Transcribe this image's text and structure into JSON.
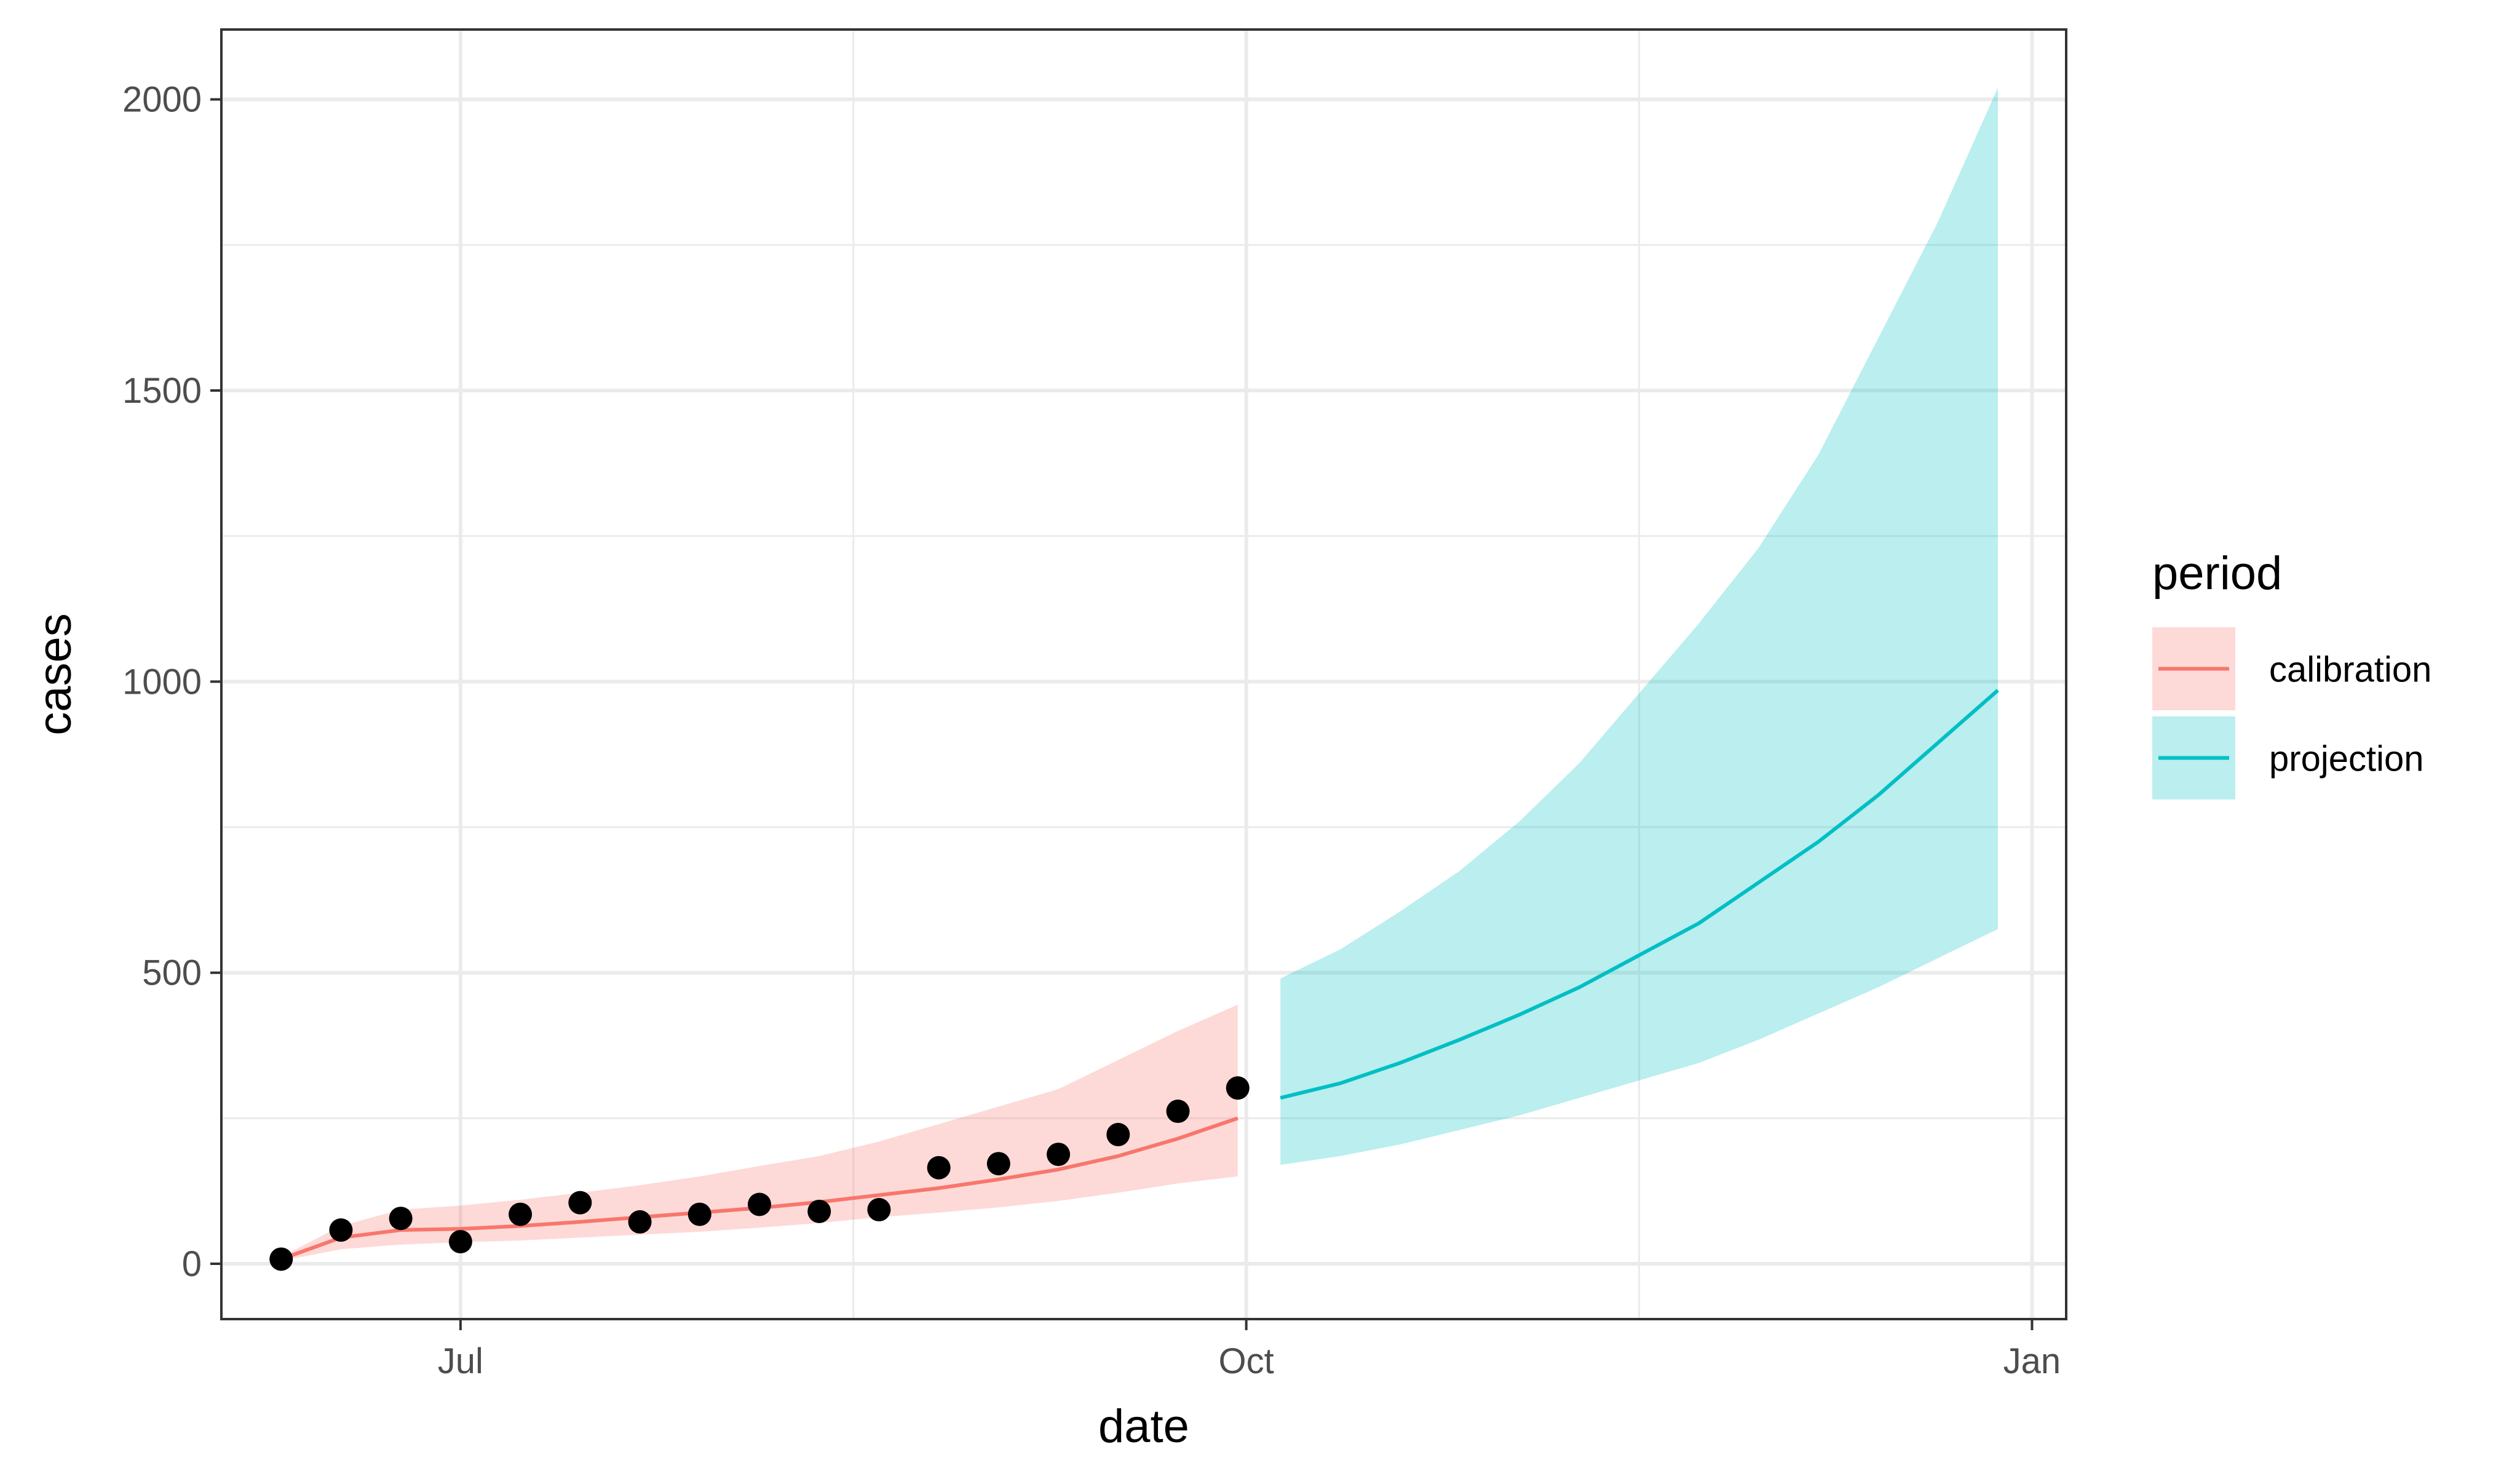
{
  "chart_data": {
    "type": "line",
    "xlabel": "date",
    "ylabel": "cases",
    "x_axis_type": "date",
    "xlim": [
      "2020-06-03",
      "2021-01-05"
    ],
    "ylim": [
      -95,
      2120
    ],
    "x_ticks": [
      {
        "date": "2020-07-01",
        "label": "Jul"
      },
      {
        "date": "2020-10-01",
        "label": "Oct"
      },
      {
        "date": "2021-01-01",
        "label": "Jan"
      }
    ],
    "y_ticks": [
      0,
      500,
      1000,
      1500,
      2000
    ],
    "grid": true,
    "legend": {
      "title": "period",
      "position": "right",
      "entries": [
        {
          "label": "calibration",
          "color": "#F8766D",
          "fill": "#F8766D"
        },
        {
          "label": "projection",
          "color": "#00BFC4",
          "fill": "#00BFC4"
        }
      ]
    },
    "series": [
      {
        "name": "calibration",
        "color": "#F8766D",
        "x": [
          "2020-06-10",
          "2020-06-17",
          "2020-06-24",
          "2020-07-01",
          "2020-07-08",
          "2020-07-15",
          "2020-07-22",
          "2020-07-29",
          "2020-08-05",
          "2020-08-12",
          "2020-08-19",
          "2020-08-26",
          "2020-09-02",
          "2020-09-09",
          "2020-09-16",
          "2020-09-23",
          "2020-09-30"
        ],
        "y": [
          8,
          45,
          58,
          60,
          65,
          72,
          80,
          88,
          96,
          106,
          118,
          130,
          145,
          162,
          185,
          215,
          250
        ],
        "lower": [
          5,
          25,
          33,
          37,
          40,
          45,
          50,
          55,
          62,
          70,
          80,
          88,
          97,
          108,
          122,
          138,
          150
        ],
        "upper": [
          12,
          65,
          93,
          100,
          110,
          122,
          135,
          150,
          168,
          185,
          210,
          240,
          270,
          300,
          350,
          400,
          445
        ]
      },
      {
        "name": "projection",
        "color": "#00BFC4",
        "x": [
          "2020-10-05",
          "2020-10-12",
          "2020-10-19",
          "2020-10-26",
          "2020-11-02",
          "2020-11-09",
          "2020-11-16",
          "2020-11-23",
          "2020-11-30",
          "2020-12-07",
          "2020-12-14",
          "2020-12-21",
          "2020-12-28"
        ],
        "y": [
          285,
          310,
          345,
          385,
          428,
          475,
          530,
          585,
          655,
          725,
          805,
          895,
          985
        ],
        "lower": [
          170,
          185,
          205,
          230,
          255,
          285,
          315,
          345,
          385,
          430,
          475,
          525,
          575
        ],
        "upper": [
          490,
          540,
          605,
          675,
          760,
          860,
          980,
          1100,
          1230,
          1390,
          1590,
          1790,
          2020
        ]
      }
    ],
    "points": {
      "name": "observed",
      "color": "#000000",
      "x": [
        "2020-06-10",
        "2020-06-17",
        "2020-06-24",
        "2020-07-01",
        "2020-07-08",
        "2020-07-15",
        "2020-07-22",
        "2020-07-29",
        "2020-08-05",
        "2020-08-12",
        "2020-08-19",
        "2020-08-26",
        "2020-09-02",
        "2020-09-09",
        "2020-09-16",
        "2020-09-23",
        "2020-09-30"
      ],
      "y": [
        8,
        58,
        78,
        38,
        85,
        105,
        72,
        85,
        102,
        90,
        93,
        165,
        172,
        188,
        222,
        262,
        302
      ]
    }
  }
}
